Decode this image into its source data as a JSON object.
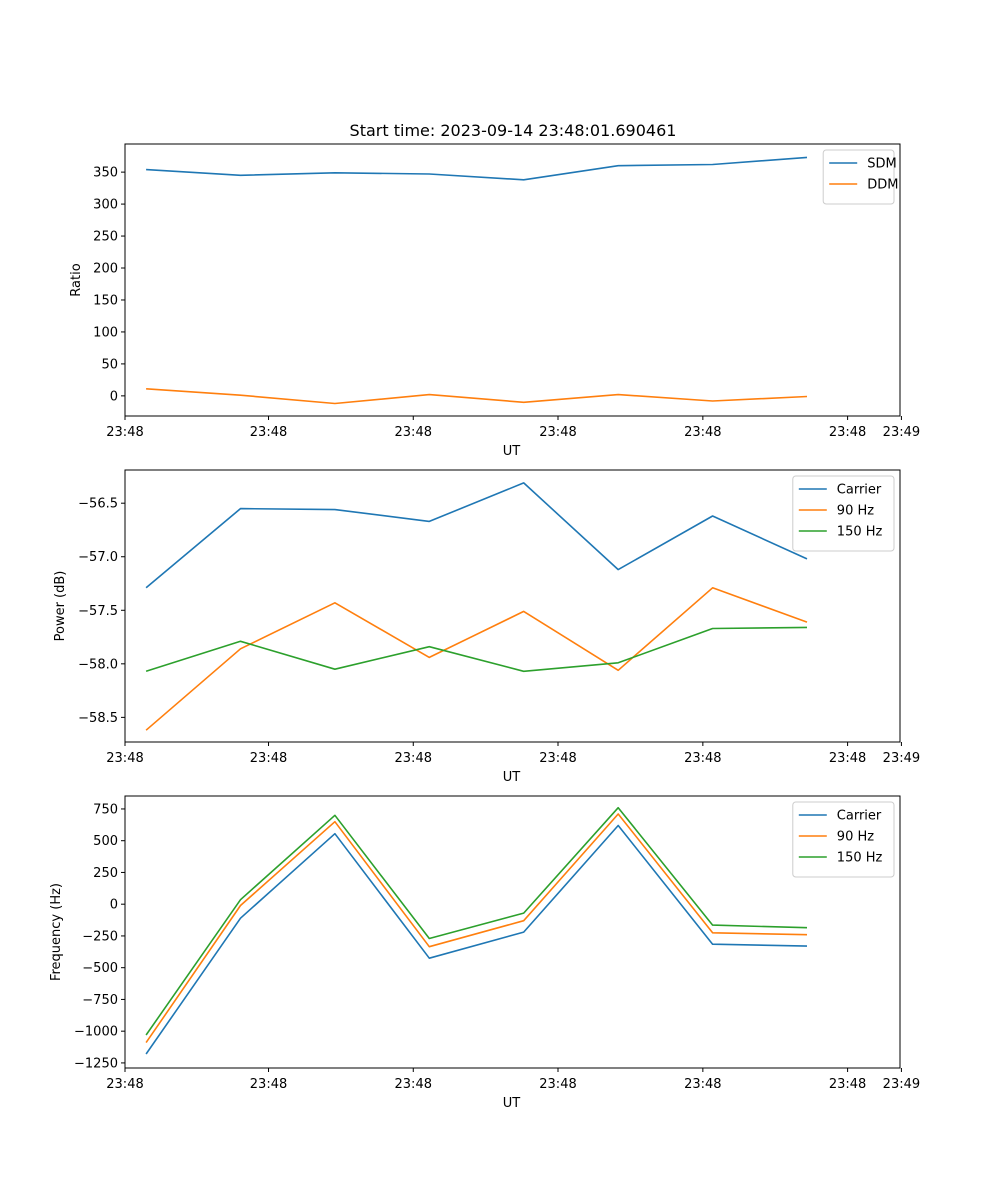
{
  "title": "Start time: 2023-09-14 23:48:01.690461",
  "colors": {
    "blue": "#1f77b4",
    "orange": "#ff7f0e",
    "green": "#2ca02c"
  },
  "chart_data": [
    {
      "type": "line",
      "xlabel": "UT",
      "ylabel": "Ratio",
      "x": [
        1,
        2,
        3,
        4,
        5,
        6,
        7,
        8
      ],
      "xlim": [
        0.777,
        8.985
      ],
      "ylim": [
        -31.5,
        394
      ],
      "yticks": [
        0,
        50,
        100,
        150,
        200,
        250,
        300,
        350
      ],
      "ytick_labels": [
        "0",
        "50",
        "100",
        "150",
        "200",
        "250",
        "300",
        "350"
      ],
      "xticks": [
        0.777,
        2.297,
        3.83,
        5.363,
        6.897,
        8.43,
        9.0
      ],
      "xtick_labels": [
        "23:48",
        "23:48",
        "23:48",
        "23:48",
        "23:48",
        "23:48",
        "23:49"
      ],
      "legend_position": "top-right",
      "series": [
        {
          "name": "SDM",
          "color": "#1f77b4",
          "values": [
            354,
            345,
            349,
            347,
            338,
            360,
            362,
            373
          ]
        },
        {
          "name": "DDM",
          "color": "#ff7f0e",
          "values": [
            11,
            1,
            -12,
            2,
            -10,
            2,
            -8,
            -1
          ]
        }
      ]
    },
    {
      "type": "line",
      "xlabel": "UT",
      "ylabel": "Power (dB)",
      "x": [
        1,
        2,
        3,
        4,
        5,
        6,
        7,
        8
      ],
      "xlim": [
        0.777,
        8.985
      ],
      "ylim": [
        -58.73,
        -56.19
      ],
      "yticks": [
        -58.5,
        -58.0,
        -57.5,
        -57.0,
        -56.5
      ],
      "ytick_labels": [
        "−58.5",
        "−58.0",
        "−57.5",
        "−57.0",
        "−56.5"
      ],
      "xticks": [
        0.777,
        2.297,
        3.83,
        5.363,
        6.897,
        8.43,
        9.0
      ],
      "xtick_labels": [
        "23:48",
        "23:48",
        "23:48",
        "23:48",
        "23:48",
        "23:48",
        "23:49"
      ],
      "legend_position": "top-right",
      "series": [
        {
          "name": "Carrier",
          "color": "#1f77b4",
          "values": [
            -57.29,
            -56.55,
            -56.56,
            -56.67,
            -56.31,
            -57.12,
            -56.62,
            -57.02
          ]
        },
        {
          "name": "90 Hz",
          "color": "#ff7f0e",
          "values": [
            -58.62,
            -57.86,
            -57.43,
            -57.94,
            -57.51,
            -58.06,
            -57.29,
            -57.61
          ]
        },
        {
          "name": "150 Hz",
          "color": "#2ca02c",
          "values": [
            -58.07,
            -57.79,
            -58.05,
            -57.84,
            -58.07,
            -57.99,
            -57.67,
            -57.66
          ]
        }
      ]
    },
    {
      "type": "line",
      "xlabel": "UT",
      "ylabel": "Frequency (Hz)",
      "x": [
        1,
        2,
        3,
        4,
        5,
        6,
        7,
        8
      ],
      "xlim": [
        0.777,
        8.985
      ],
      "ylim": [
        -1290,
        852
      ],
      "yticks": [
        -1250,
        -1000,
        -750,
        -500,
        -250,
        0,
        250,
        500,
        750
      ],
      "ytick_labels": [
        "−1250",
        "−1000",
        "−750",
        "−500",
        "−250",
        "0",
        "250",
        "500",
        "750"
      ],
      "xticks": [
        0.777,
        2.297,
        3.83,
        5.363,
        6.897,
        8.43,
        9.0
      ],
      "xtick_labels": [
        "23:48",
        "23:48",
        "23:48",
        "23:48",
        "23:48",
        "23:48",
        "23:49"
      ],
      "legend_position": "top-right",
      "series": [
        {
          "name": "Carrier",
          "color": "#1f77b4",
          "values": [
            -1180,
            -110,
            555,
            -425,
            -220,
            620,
            -315,
            -330
          ]
        },
        {
          "name": "90 Hz",
          "color": "#ff7f0e",
          "values": [
            -1090,
            -10,
            650,
            -335,
            -130,
            710,
            -225,
            -240
          ]
        },
        {
          "name": "150 Hz",
          "color": "#2ca02c",
          "values": [
            -1030,
            35,
            700,
            -270,
            -70,
            760,
            -165,
            -185
          ]
        }
      ]
    }
  ]
}
